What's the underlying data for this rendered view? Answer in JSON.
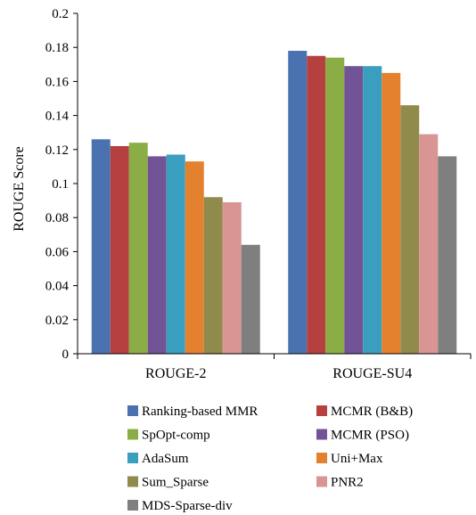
{
  "chart_data": {
    "type": "bar",
    "categories": [
      "ROUGE-2",
      "ROUGE-SU4"
    ],
    "series": [
      {
        "name": "Ranking-based MMR",
        "color": "#4a72b0",
        "values": [
          0.126,
          0.178
        ]
      },
      {
        "name": "MCMR (B&B)",
        "color": "#b5403f",
        "values": [
          0.122,
          0.175
        ]
      },
      {
        "name": "SpOpt-comp",
        "color": "#8bad45",
        "values": [
          0.124,
          0.174
        ]
      },
      {
        "name": "MCMR (PSO)",
        "color": "#725396",
        "values": [
          0.116,
          0.169
        ]
      },
      {
        "name": "AdaSum",
        "color": "#3a9fbf",
        "values": [
          0.117,
          0.169
        ]
      },
      {
        "name": "Uni+Max",
        "color": "#e3812f",
        "values": [
          0.113,
          0.165
        ]
      },
      {
        "name": "Sum_Sparse",
        "color": "#908a4d",
        "values": [
          0.092,
          0.146
        ]
      },
      {
        "name": "PNR2",
        "color": "#d99594",
        "values": [
          0.089,
          0.129
        ]
      },
      {
        "name": "MDS-Sparse-div",
        "color": "#7f7f7f",
        "values": [
          0.064,
          0.116
        ]
      }
    ],
    "title": "",
    "xlabel": "",
    "ylabel": "ROUGE Score",
    "ylim": [
      0,
      0.2
    ],
    "yticks": [
      "0",
      "0.02",
      "0.04",
      "0.06",
      "0.08",
      "0.1",
      "0.12",
      "0.14",
      "0.16",
      "0.18",
      "0.2"
    ],
    "grid": false,
    "legend_position": "bottom"
  }
}
